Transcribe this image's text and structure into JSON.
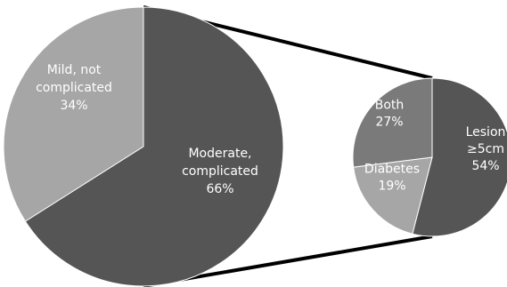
{
  "chart_data": [
    {
      "type": "pie",
      "title": "",
      "categories": [
        "Mild, not complicated",
        "Moderate, complicated"
      ],
      "values": [
        34,
        66
      ],
      "labels": [
        {
          "lines": [
            "Mild, not",
            "complicated",
            "34%"
          ]
        },
        {
          "lines": [
            "Moderate,",
            "complicated",
            "66%"
          ]
        }
      ],
      "colors": [
        "#a6a6a6",
        "#555555"
      ],
      "exploded_slice": "Moderate, complicated"
    },
    {
      "type": "pie",
      "title": "",
      "categories": [
        "Lesion ≥5cm",
        "Diabetes",
        "Both"
      ],
      "values": [
        54,
        19,
        27
      ],
      "labels": [
        {
          "lines": [
            "Lesion",
            "≥5cm",
            "54%"
          ]
        },
        {
          "lines": [
            "Diabetes",
            "19%"
          ]
        },
        {
          "lines": [
            "Both",
            "27%"
          ]
        }
      ],
      "colors": [
        "#555555",
        "#a6a6a6",
        "#7a7a7a"
      ]
    }
  ],
  "colors": {
    "connector": "#000000",
    "slice_border": "#ffffff",
    "label_text": "#ffffff"
  }
}
